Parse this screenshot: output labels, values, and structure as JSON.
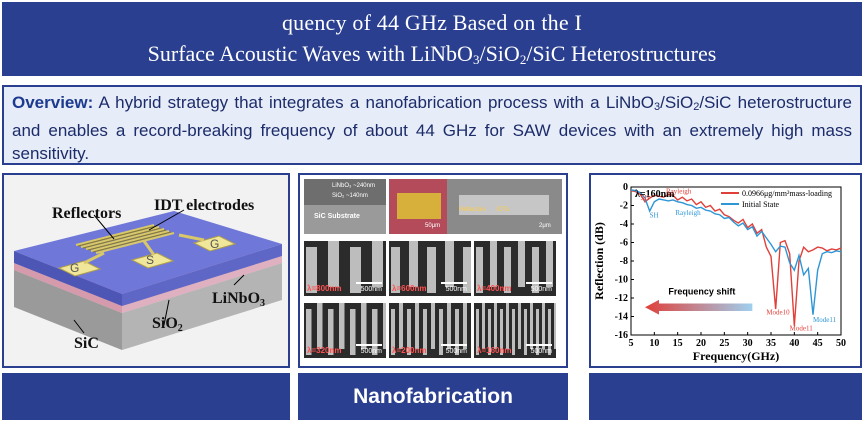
{
  "title": {
    "line1": "quency of 44 GHz Based on the I",
    "line2_pre": "Surface Acoustic Waves with LiNbO",
    "line2_sub1": "3",
    "line2_mid": "/SiO",
    "line2_sub2": "2",
    "line2_post": "/SiC Heterostructures"
  },
  "overview": {
    "label": "Overview:",
    "text_a": " A hybrid strategy that integrates a nanofabrication process with a LiNbO",
    "sub1": "3",
    "text_b": "/SiO",
    "sub2": "2",
    "text_c": "/SiC heterostructure and enables a record-breaking frequency of about 44 GHz for SAW devices with an extremely high mass sensitivity."
  },
  "device": {
    "reflectors": "Reflectors",
    "idt": "IDT electrodes",
    "g1": "G",
    "s": "S",
    "g2": "G",
    "linbo": "LiNbO",
    "linbo_sub": "3",
    "sio": "SiO",
    "sio_sub": "2",
    "sic": "SiC"
  },
  "nano": {
    "footer": "Nanofabrication",
    "stack_linbo": "LiNbO₃ ~240nm",
    "stack_sio": "SiO₂ ~140nm",
    "stack_sic": "SiC Substrate",
    "scale_50": "50μm",
    "scale_2": "2μm",
    "lbl_reflectors": "Reflectors",
    "lbl_idts": "IDTs",
    "tiles": [
      {
        "lam": "λ=800nm",
        "scale": "500nm"
      },
      {
        "lam": "λ=600nm",
        "scale": "500nm"
      },
      {
        "lam": "λ=400nm",
        "scale": "500nm"
      },
      {
        "lam": "λ=320nm",
        "scale": "500nm"
      },
      {
        "lam": "λ=200nm",
        "scale": "500nm"
      },
      {
        "lam": "λ=160nm",
        "scale": "500nm"
      }
    ]
  },
  "chart_data": {
    "type": "line",
    "xlabel": "Frequency(GHz)",
    "ylabel": "Reflection (dB)",
    "xlim": [
      5,
      50
    ],
    "ylim": [
      -16,
      0
    ],
    "xticks": [
      5,
      10,
      15,
      20,
      25,
      30,
      35,
      40,
      45,
      50
    ],
    "yticks": [
      0,
      -2,
      -4,
      -6,
      -8,
      -10,
      -12,
      -14,
      -16
    ],
    "annotations": {
      "lambda": "λ=160nm",
      "sh_top": "SH",
      "rayleigh_top": "Rayleigh",
      "sh_bottom": "SH",
      "rayleigh_bottom": "Rayleigh",
      "freq_shift": "Frequency shift",
      "mode10": "Mode10",
      "mode11": "Mode11",
      "mode11b": "Mode11"
    },
    "series": [
      {
        "name": "0.0966μg/mm²mass-loading",
        "color": "#e0403a",
        "x": [
          5,
          6,
          7,
          8,
          9,
          10,
          11,
          12,
          13,
          14,
          15,
          16,
          17,
          18,
          19,
          20,
          21,
          22,
          23,
          24,
          25,
          26,
          27,
          28,
          29,
          30,
          31,
          32,
          33,
          34,
          35,
          36,
          37,
          38,
          39,
          40,
          41,
          42,
          43,
          44,
          45,
          46,
          47,
          48,
          49,
          50
        ],
        "y": [
          -0.4,
          -0.5,
          -0.8,
          -1.6,
          -1.2,
          -0.9,
          -1.0,
          -1.1,
          -0.8,
          -0.9,
          -1.4,
          -1.1,
          -1.5,
          -1.3,
          -1.9,
          -1.6,
          -2.2,
          -2.0,
          -2.6,
          -2.4,
          -3.0,
          -3.2,
          -3.6,
          -3.9,
          -3.5,
          -4.4,
          -4.0,
          -5.0,
          -4.6,
          -6.5,
          -7.5,
          -13.2,
          -6.0,
          -5.8,
          -7.2,
          -15.0,
          -8.0,
          -6.5,
          -7.0,
          -6.8,
          -6.5,
          -6.6,
          -6.9,
          -6.7,
          -6.8,
          -6.6
        ]
      },
      {
        "name": "Initial State",
        "color": "#2f96d6",
        "x": [
          5,
          6,
          7,
          8,
          9,
          10,
          11,
          12,
          13,
          14,
          15,
          16,
          17,
          18,
          19,
          20,
          21,
          22,
          23,
          24,
          25,
          26,
          27,
          28,
          29,
          30,
          31,
          32,
          33,
          34,
          35,
          36,
          37,
          38,
          39,
          40,
          41,
          42,
          43,
          44,
          45,
          46,
          47,
          48,
          49,
          50
        ],
        "y": [
          -0.3,
          -0.4,
          -0.6,
          -1.2,
          -2.6,
          -1.6,
          -1.3,
          -1.4,
          -1.5,
          -1.4,
          -1.6,
          -1.7,
          -1.9,
          -2.0,
          -2.3,
          -2.2,
          -2.5,
          -2.6,
          -2.9,
          -3.0,
          -3.4,
          -3.3,
          -3.8,
          -4.2,
          -3.9,
          -4.6,
          -4.3,
          -5.3,
          -4.8,
          -5.5,
          -6.2,
          -7.0,
          -6.4,
          -6.5,
          -8.2,
          -9.0,
          -7.4,
          -9.5,
          -8.8,
          -13.8,
          -9.0,
          -7.2,
          -7.0,
          -7.1,
          -6.9,
          -7.0
        ]
      }
    ]
  }
}
